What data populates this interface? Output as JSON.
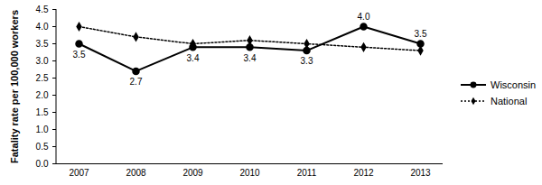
{
  "chart_data": {
    "type": "line",
    "y_label": "Fatality rate per 100,000 workers",
    "categories": [
      "2007",
      "2008",
      "2009",
      "2010",
      "2011",
      "2012",
      "2013"
    ],
    "series": [
      {
        "name": "Wisconsin",
        "color": "#000000",
        "marker": "circle",
        "line_style": "solid",
        "data_labels": true,
        "values": [
          3.5,
          2.7,
          3.4,
          3.4,
          3.3,
          4.0,
          3.5
        ],
        "value_labels": [
          "3.5",
          "2.7",
          "3.4",
          "3.4",
          "3.3",
          "4.0",
          "3.5"
        ]
      },
      {
        "name": "National",
        "color": "#000000",
        "marker": "diamond",
        "line_style": "dotted",
        "values": [
          4.0,
          3.7,
          3.5,
          3.6,
          3.5,
          3.4,
          3.3
        ]
      }
    ],
    "ylim": [
      0,
      4.5
    ],
    "yticks": [
      {
        "value": 0,
        "label": "0.0"
      },
      0.5,
      {
        "value": 1,
        "label": "1.0"
      },
      1.5,
      {
        "value": 2,
        "label": "2.0"
      },
      2.5,
      {
        "value": 3,
        "label": "3.0"
      },
      3.5,
      {
        "value": 4,
        "label": "4.0"
      },
      4.5
    ],
    "grid": false,
    "legend": "right"
  }
}
